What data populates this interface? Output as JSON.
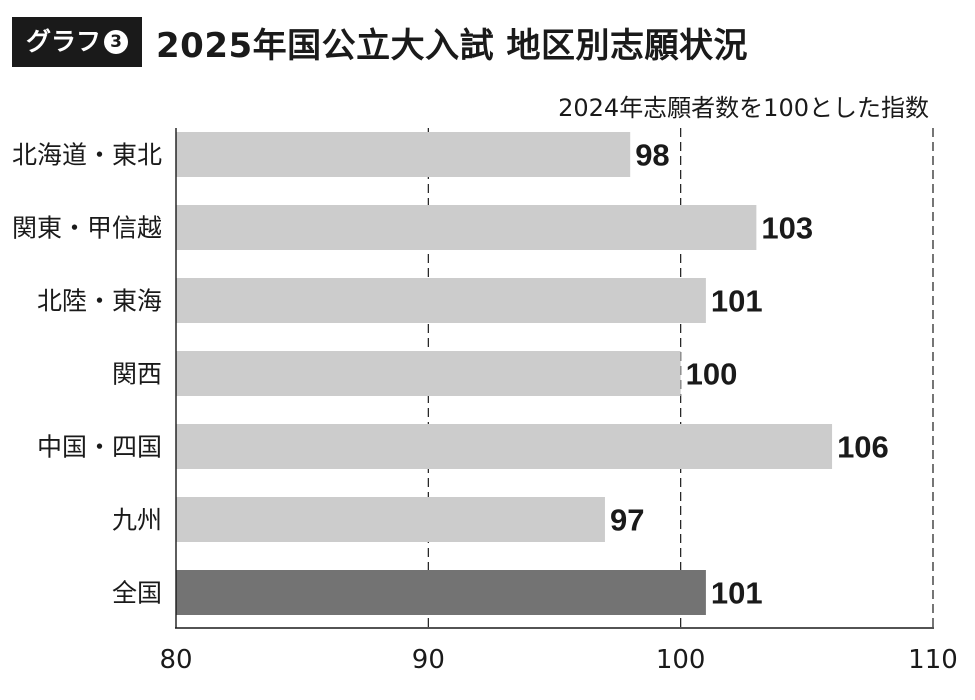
{
  "header": {
    "badge_label": "グラフ",
    "badge_number": "3",
    "title": "2025年国公立大入試 地区別志願状況"
  },
  "chart_data": {
    "type": "bar",
    "orientation": "horizontal",
    "subtitle": "2024年志願者数を100とした指数",
    "categories": [
      "北海道・東北",
      "関東・甲信越",
      "北陸・東海",
      "関西",
      "中国・四国",
      "九州",
      "全国"
    ],
    "values": [
      98,
      103,
      101,
      100,
      106,
      97,
      101
    ],
    "data_labels": [
      "98",
      "103",
      "101",
      "100",
      "106",
      "97",
      "101"
    ],
    "xlim": [
      80,
      110
    ],
    "x_ticks": [
      "80",
      "90",
      "100",
      "110"
    ],
    "gridlines": "dashed vertical at 90, 100, 110",
    "colors": {
      "bar": "#cccccc",
      "highlight_bar": "#737373",
      "highlight_category": "全国",
      "text": "#1a1a1a"
    }
  }
}
